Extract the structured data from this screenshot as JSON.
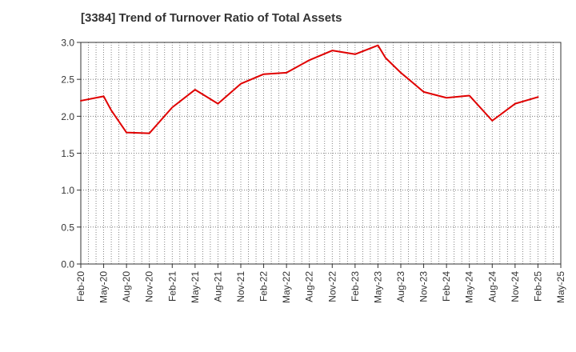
{
  "chart_data": {
    "type": "line",
    "title": "[3384]  Trend of Turnover Ratio of Total Assets",
    "xlabel": "",
    "ylabel": "",
    "ylim": [
      0,
      3.0
    ],
    "y_ticks": [
      "0.0",
      "0.5",
      "1.0",
      "1.5",
      "2.0",
      "2.5",
      "3.0"
    ],
    "x_tick_labels": [
      "Feb-20",
      "May-20",
      "Aug-20",
      "Nov-20",
      "Feb-21",
      "May-21",
      "Aug-21",
      "Nov-21",
      "Feb-22",
      "May-22",
      "Aug-22",
      "Nov-22",
      "Feb-23",
      "May-23",
      "Aug-23",
      "Nov-23",
      "Feb-24",
      "May-24",
      "Aug-24",
      "Nov-24",
      "Feb-25",
      "May-25"
    ],
    "grid": true,
    "series": [
      {
        "name": "",
        "color": "#e00000",
        "points": [
          {
            "x": "Feb-20",
            "y": 2.21
          },
          {
            "x": "May-20",
            "y": 2.27
          },
          {
            "x": "Jun-20",
            "y": 2.08
          },
          {
            "x": "Aug-20",
            "y": 1.78
          },
          {
            "x": "Nov-20",
            "y": 1.77
          },
          {
            "x": "Feb-21",
            "y": 2.12
          },
          {
            "x": "May-21",
            "y": 2.36
          },
          {
            "x": "Aug-21",
            "y": 2.17
          },
          {
            "x": "Nov-21",
            "y": 2.44
          },
          {
            "x": "Feb-22",
            "y": 2.57
          },
          {
            "x": "May-22",
            "y": 2.59
          },
          {
            "x": "Aug-22",
            "y": 2.76
          },
          {
            "x": "Nov-22",
            "y": 2.89
          },
          {
            "x": "Feb-23",
            "y": 2.84
          },
          {
            "x": "May-23",
            "y": 2.96
          },
          {
            "x": "Jun-23",
            "y": 2.79
          },
          {
            "x": "Aug-23",
            "y": 2.59
          },
          {
            "x": "Nov-23",
            "y": 2.33
          },
          {
            "x": "Feb-24",
            "y": 2.25
          },
          {
            "x": "May-24",
            "y": 2.28
          },
          {
            "x": "Aug-24",
            "y": 1.94
          },
          {
            "x": "Nov-24",
            "y": 2.17
          },
          {
            "x": "Feb-25",
            "y": 2.26
          }
        ]
      }
    ]
  }
}
